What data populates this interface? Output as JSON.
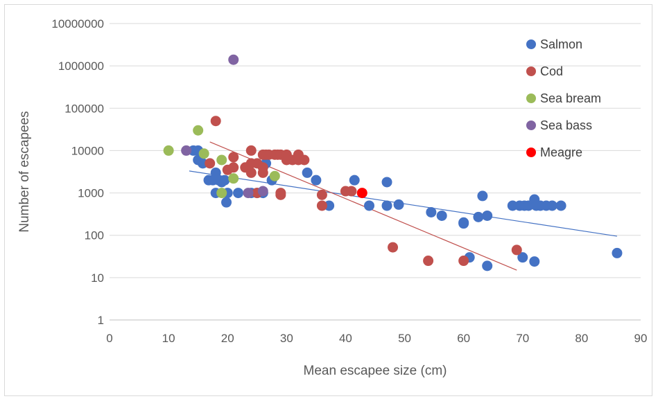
{
  "chart_data": {
    "type": "scatter",
    "title": "",
    "xlabel": "Mean escapee size (cm)",
    "ylabel": "Number of escapees",
    "xlim": [
      0,
      90
    ],
    "ylim": [
      1,
      10000000
    ],
    "yscale": "log",
    "x_ticks": [
      0,
      10,
      20,
      30,
      40,
      50,
      60,
      70,
      80,
      90
    ],
    "y_ticks": [
      "1",
      "10",
      "100",
      "1000",
      "10000",
      "100000",
      "1000000",
      "10000000"
    ],
    "y_tick_values": [
      1,
      10,
      100,
      1000,
      10000,
      100000,
      1000000,
      10000000
    ],
    "grid": "horizontal",
    "legend_position": "top-right",
    "series": [
      {
        "name": "Salmon",
        "color": "#4472C4",
        "points": [
          [
            14.2,
            10000
          ],
          [
            15,
            10000
          ],
          [
            15,
            6000
          ],
          [
            15.8,
            5000
          ],
          [
            16.8,
            2000
          ],
          [
            17.5,
            2000
          ],
          [
            18,
            3000
          ],
          [
            18,
            1000
          ],
          [
            18.5,
            2000
          ],
          [
            19,
            1800
          ],
          [
            19.5,
            2000
          ],
          [
            19.8,
            600
          ],
          [
            20,
            1000
          ],
          [
            21.8,
            1000
          ],
          [
            24,
            1000
          ],
          [
            25,
            1000
          ],
          [
            26,
            1000
          ],
          [
            26.5,
            5000
          ],
          [
            27.5,
            2000
          ],
          [
            33.5,
            3000
          ],
          [
            35,
            2000
          ],
          [
            37.2,
            500
          ],
          [
            41.5,
            2000
          ],
          [
            44,
            500
          ],
          [
            47,
            1800
          ],
          [
            47,
            500
          ],
          [
            49,
            530
          ],
          [
            54.5,
            350
          ],
          [
            56.3,
            290
          ],
          [
            60,
            190
          ],
          [
            60,
            200
          ],
          [
            61,
            30
          ],
          [
            62.5,
            270
          ],
          [
            63.2,
            850
          ],
          [
            64,
            290
          ],
          [
            64,
            19
          ],
          [
            68.3,
            500
          ],
          [
            69.5,
            500
          ],
          [
            70,
            30
          ],
          [
            70.3,
            500
          ],
          [
            71,
            500
          ],
          [
            72,
            700
          ],
          [
            72,
            24
          ],
          [
            72.3,
            500
          ],
          [
            73,
            500
          ],
          [
            74,
            500
          ],
          [
            75,
            500
          ],
          [
            76.5,
            500
          ],
          [
            86,
            38
          ]
        ]
      },
      {
        "name": "Cod",
        "color": "#C0504D",
        "points": [
          [
            17,
            5000
          ],
          [
            18,
            50000
          ],
          [
            20,
            3500
          ],
          [
            21,
            4000
          ],
          [
            21,
            7000
          ],
          [
            23,
            4000
          ],
          [
            24,
            10000
          ],
          [
            24,
            3000
          ],
          [
            24,
            5000
          ],
          [
            25,
            1000
          ],
          [
            25,
            5000
          ],
          [
            26,
            3000
          ],
          [
            26,
            4000
          ],
          [
            26,
            8000
          ],
          [
            26.5,
            8000
          ],
          [
            27,
            8000
          ],
          [
            28,
            8000
          ],
          [
            28.5,
            8000
          ],
          [
            29,
            8000
          ],
          [
            29,
            1000
          ],
          [
            29,
            900
          ],
          [
            30,
            8000
          ],
          [
            30,
            6000
          ],
          [
            31,
            6000
          ],
          [
            32,
            8000
          ],
          [
            32,
            6000
          ],
          [
            33,
            6000
          ],
          [
            36,
            900
          ],
          [
            36,
            500
          ],
          [
            40,
            1100
          ],
          [
            41,
            1100
          ],
          [
            48,
            52
          ],
          [
            54,
            25
          ],
          [
            60,
            25
          ],
          [
            69,
            45
          ]
        ]
      },
      {
        "name": "Sea bream",
        "color": "#9BBB59",
        "points": [
          [
            10,
            10000
          ],
          [
            15,
            30000
          ],
          [
            16,
            8500
          ],
          [
            19,
            6000
          ],
          [
            19,
            1000
          ],
          [
            21,
            2200
          ],
          [
            28,
            2500
          ]
        ]
      },
      {
        "name": "Sea bass",
        "color": "#8064A2",
        "points": [
          [
            13,
            10000
          ],
          [
            21,
            1400000
          ],
          [
            23.5,
            1000
          ],
          [
            26,
            1100
          ]
        ]
      },
      {
        "name": "Meagre",
        "color": "#FF0000",
        "points": [
          [
            42.8,
            1000
          ]
        ]
      }
    ],
    "trendlines": [
      {
        "series": "Salmon",
        "color": "#4472C4",
        "x": [
          13.5,
          86
        ],
        "y": [
          3300,
          95
        ]
      },
      {
        "series": "Cod",
        "color": "#C0504D",
        "x": [
          17,
          69
        ],
        "y": [
          16000,
          15
        ]
      }
    ]
  }
}
